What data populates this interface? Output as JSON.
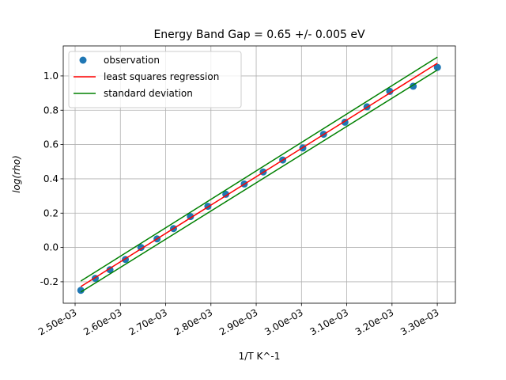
{
  "chart_data": {
    "type": "scatter",
    "title": "Energy Band Gap = 0.65 +/- 0.005 eV",
    "xlabel": "1/T  K^-1",
    "ylabel": "log(rho)",
    "xlim": [
      0.0024738,
      0.00334
    ],
    "ylim": [
      -0.325,
      1.175
    ],
    "xticks": [
      {
        "value": 0.0025,
        "label": "2.50e-03"
      },
      {
        "value": 0.0026,
        "label": "2.60e-03"
      },
      {
        "value": 0.0027,
        "label": "2.70e-03"
      },
      {
        "value": 0.0028,
        "label": "2.80e-03"
      },
      {
        "value": 0.0029,
        "label": "2.90e-03"
      },
      {
        "value": 0.003,
        "label": "3.00e-03"
      },
      {
        "value": 0.0031,
        "label": "3.10e-03"
      },
      {
        "value": 0.0032,
        "label": "3.20e-03"
      },
      {
        "value": 0.0033,
        "label": "3.30e-03"
      }
    ],
    "yticks": [
      -0.2,
      {
        "value": 0,
        "label": "0.0"
      },
      0.2,
      0.4,
      0.6,
      0.8,
      {
        "value": 1,
        "label": "1.0"
      }
    ],
    "grid": true,
    "legend": "upper left",
    "series": [
      {
        "name": "observation",
        "kind": "scatter",
        "color": "#1f77b4",
        "x": [
          0.0025126,
          0.0025445,
          0.002577,
          0.002611,
          0.0026455,
          0.002681,
          0.0027174,
          0.0027548,
          0.0027933,
          0.0028329,
          0.0028736,
          0.0029155,
          0.0029586,
          0.003003,
          0.0030488,
          0.003096,
          0.0031447,
          0.0031949,
          0.0032468,
          0.0033003
        ],
        "values": [
          -0.25,
          -0.18,
          -0.13,
          -0.07,
          0.0,
          0.05,
          0.11,
          0.18,
          0.24,
          0.31,
          0.37,
          0.44,
          0.51,
          0.58,
          0.66,
          0.73,
          0.82,
          0.91,
          0.94,
          1.05
        ]
      },
      {
        "name": "least squares regression",
        "kind": "line",
        "color": "red",
        "x": [
          0.0025126,
          0.0033003
        ],
        "values": [
          -0.228,
          1.074
        ]
      },
      {
        "name": "standard deviation",
        "kind": "line",
        "color": "green",
        "x": [
          0.0025126,
          0.0033003
        ],
        "values": [
          -0.196,
          1.11
        ]
      },
      {
        "kind": "line",
        "color": "green",
        "x": [
          0.0025126,
          0.0033003
        ],
        "values": [
          -0.26,
          1.035
        ]
      }
    ]
  }
}
